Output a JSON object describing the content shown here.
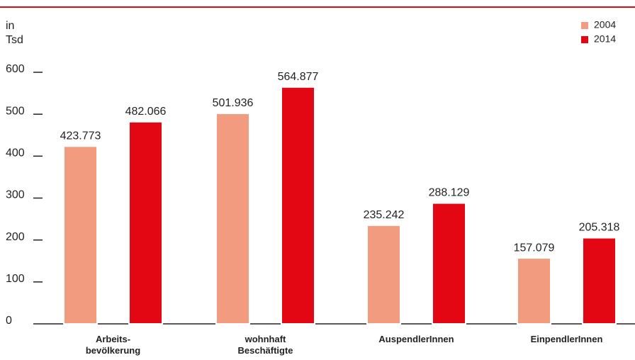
{
  "chart_data": {
    "type": "bar",
    "y_label": "in Tsd",
    "categories": [
      "Arbeits-bevölkerung",
      "wohnhaft Beschäftigte",
      "AuspendlerInnen",
      "EinpendlerInnen"
    ],
    "series": [
      {
        "name": "2004",
        "color": "#f29b7e",
        "values": [
          423.773,
          501.936,
          235.242,
          157.079
        ]
      },
      {
        "name": "2014",
        "color": "#e30613",
        "values": [
          482.066,
          564.877,
          288.129,
          205.318
        ]
      }
    ],
    "ylim": [
      0,
      600
    ],
    "yticks": [
      0,
      100,
      200,
      300,
      400,
      500,
      600
    ],
    "legend": "top-right"
  }
}
